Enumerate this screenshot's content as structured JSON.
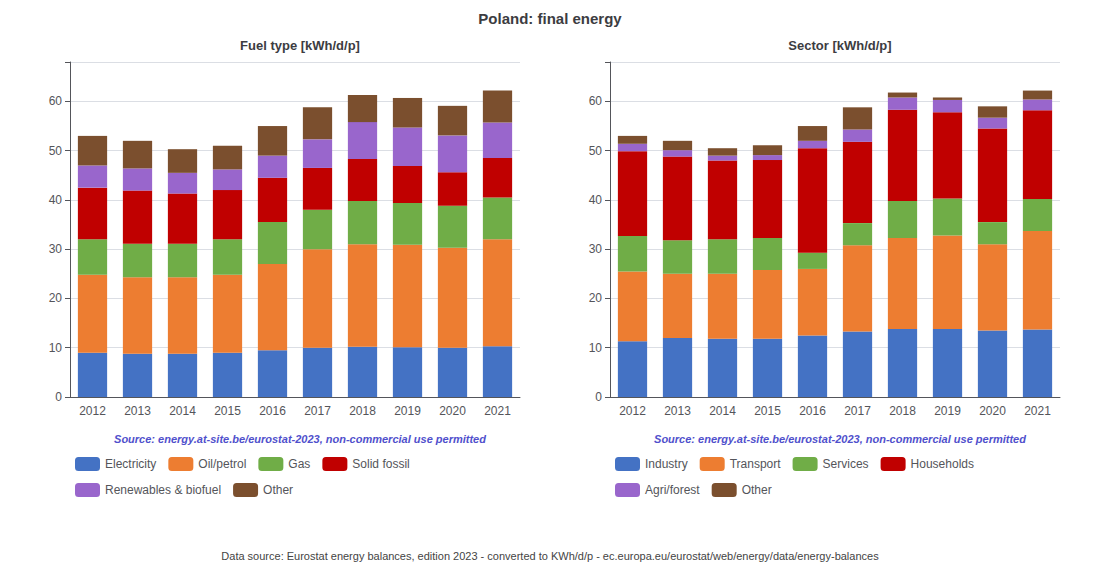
{
  "title": "Poland: final energy",
  "annotations": [
    "Data source: Eurostat energy balances, edition 2023 - converted to KWh/d/p - ec.europa.eu/eurostat/web/energy/data/energy-balances"
  ],
  "chart_data": [
    {
      "type": "bar",
      "stacked": true,
      "title": "Fuel type [kWh/d/p]",
      "annotations": [
        "Source: energy.at-site.be/eurostat-2023, non-commercial use permitted"
      ],
      "categories": [
        "2012",
        "2013",
        "2014",
        "2015",
        "2016",
        "2017",
        "2018",
        "2019",
        "2020",
        "2021"
      ],
      "series": [
        {
          "name": "Electricity",
          "color": "#4472c4",
          "values": [
            9.0,
            8.8,
            8.8,
            9.0,
            9.5,
            10.0,
            10.2,
            10.1,
            10.0,
            10.3
          ]
        },
        {
          "name": "Oil/petrol",
          "color": "#ed7d31",
          "values": [
            15.8,
            15.5,
            15.5,
            15.8,
            17.5,
            20.0,
            20.8,
            20.8,
            20.3,
            21.7
          ]
        },
        {
          "name": "Gas",
          "color": "#70ad47",
          "values": [
            7.2,
            6.8,
            6.8,
            7.2,
            8.5,
            8.0,
            8.8,
            8.5,
            8.5,
            8.5
          ]
        },
        {
          "name": "Solid fossil",
          "color": "#c00000",
          "values": [
            10.5,
            10.8,
            10.2,
            10.0,
            9.0,
            8.5,
            8.5,
            7.5,
            6.8,
            8.0
          ]
        },
        {
          "name": "Renewables & biofuel",
          "color": "#9966cc",
          "values": [
            4.5,
            4.5,
            4.2,
            4.2,
            4.5,
            5.8,
            7.5,
            7.8,
            7.5,
            7.2
          ]
        },
        {
          "name": "Other",
          "color": "#7b4f2e",
          "values": [
            6.0,
            5.6,
            4.8,
            4.8,
            6.0,
            6.5,
            5.5,
            6.0,
            6.0,
            6.5
          ]
        }
      ],
      "ylim": [
        0,
        68
      ],
      "yticks": [
        0,
        10,
        20,
        30,
        40,
        50,
        60
      ],
      "grid": true,
      "legend": "bottom"
    },
    {
      "type": "bar",
      "stacked": true,
      "title": "Sector [kWh/d/p]",
      "annotations": [
        "Source: energy.at-site.be/eurostat-2023, non-commercial use permitted"
      ],
      "categories": [
        "2012",
        "2013",
        "2014",
        "2015",
        "2016",
        "2017",
        "2018",
        "2019",
        "2020",
        "2021"
      ],
      "series": [
        {
          "name": "Industry",
          "color": "#4472c4",
          "values": [
            11.3,
            12.0,
            11.8,
            11.8,
            12.5,
            13.3,
            13.8,
            13.8,
            13.5,
            13.7
          ]
        },
        {
          "name": "Transport",
          "color": "#ed7d31",
          "values": [
            14.2,
            13.0,
            13.2,
            14.0,
            13.5,
            17.5,
            18.5,
            19.0,
            17.5,
            20.0
          ]
        },
        {
          "name": "Services",
          "color": "#70ad47",
          "values": [
            7.2,
            6.8,
            7.0,
            6.5,
            3.3,
            4.5,
            7.5,
            7.5,
            4.5,
            6.5
          ]
        },
        {
          "name": "Households",
          "color": "#c00000",
          "values": [
            17.2,
            17.0,
            16.0,
            15.8,
            21.2,
            16.5,
            18.5,
            17.5,
            19.0,
            18.0
          ]
        },
        {
          "name": "Agri/forest",
          "color": "#9966cc",
          "values": [
            1.5,
            1.3,
            1.0,
            1.0,
            1.5,
            2.5,
            2.5,
            2.5,
            2.2,
            2.2
          ]
        },
        {
          "name": "Other",
          "color": "#7b4f2e",
          "values": [
            1.6,
            1.9,
            1.5,
            2.0,
            3.0,
            4.5,
            1.0,
            0.5,
            2.3,
            1.8
          ]
        }
      ],
      "ylim": [
        0,
        68
      ],
      "yticks": [
        0,
        10,
        20,
        30,
        40,
        50,
        60
      ],
      "grid": true,
      "legend": "bottom"
    }
  ]
}
